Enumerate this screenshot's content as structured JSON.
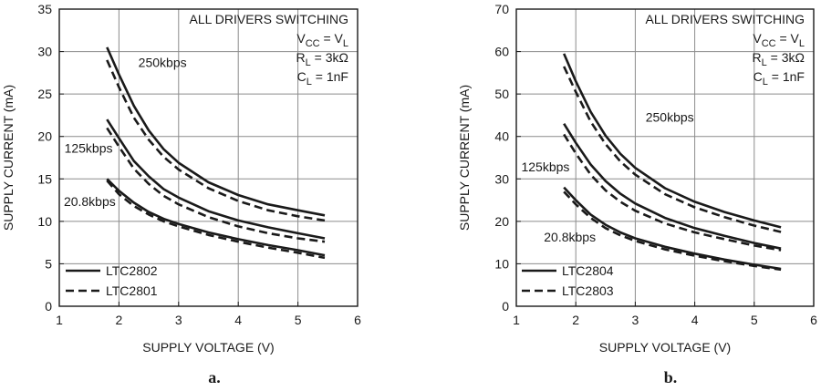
{
  "chart_data": [
    {
      "type": "line",
      "panel_label": "a.",
      "xlabel": "SUPPLY VOLTAGE (V)",
      "ylabel": "SUPPLY CURRENT (mA)",
      "xlim": [
        1,
        6
      ],
      "ylim": [
        0,
        35
      ],
      "xticks": [
        1,
        2,
        3,
        4,
        5,
        6
      ],
      "yticks": [
        0,
        5,
        10,
        15,
        20,
        25,
        30,
        35
      ],
      "grid": true,
      "legend": {
        "placement": "bottom-left",
        "entries": [
          {
            "label": "LTC2802",
            "style": "solid"
          },
          {
            "label": "LTC2801",
            "style": "dashed"
          }
        ]
      },
      "conditions": [
        {
          "parts": [
            {
              "t": "ALL DRIVERS SWITCHING"
            }
          ]
        },
        {
          "parts": [
            {
              "t": "V"
            },
            {
              "t": "CC",
              "sub": true
            },
            {
              "t": " = V"
            },
            {
              "t": "L",
              "sub": true
            }
          ]
        },
        {
          "parts": [
            {
              "t": "R"
            },
            {
              "t": "L",
              "sub": true
            },
            {
              "t": " = 3kΩ"
            }
          ]
        },
        {
          "parts": [
            {
              "t": "C"
            },
            {
              "t": "L",
              "sub": true
            },
            {
              "t": " = 1nF"
            }
          ]
        }
      ],
      "curve_labels": [
        {
          "text": "250kbps",
          "x": 2.73,
          "y": 28.2
        },
        {
          "text": "125kbps",
          "x": 1.49,
          "y": 18.1
        },
        {
          "text": "20.8kbps",
          "x": 1.51,
          "y": 11.8
        }
      ],
      "series": [
        {
          "label_ref": "250kbps",
          "style": "solid",
          "x": [
            1.8,
            2.0,
            2.25,
            2.5,
            2.75,
            3.0,
            3.5,
            4.0,
            4.5,
            5.0,
            5.45
          ],
          "y": [
            30.5,
            27.3,
            23.6,
            20.7,
            18.5,
            16.9,
            14.6,
            13.1,
            12.0,
            11.3,
            10.7
          ]
        },
        {
          "label_ref": "250kbps",
          "style": "dashed",
          "x": [
            1.8,
            2.0,
            2.25,
            2.5,
            2.75,
            3.0,
            3.5,
            4.0,
            4.5,
            5.0,
            5.45
          ],
          "y": [
            29.0,
            25.8,
            22.2,
            19.6,
            17.6,
            16.1,
            13.9,
            12.4,
            11.3,
            10.6,
            10.1
          ]
        },
        {
          "label_ref": "125kbps",
          "style": "solid",
          "x": [
            1.8,
            2.0,
            2.25,
            2.5,
            2.75,
            3.0,
            3.5,
            4.0,
            4.5,
            5.0,
            5.45
          ],
          "y": [
            22.0,
            19.8,
            17.1,
            15.3,
            13.8,
            12.8,
            11.2,
            10.1,
            9.3,
            8.6,
            8.0
          ]
        },
        {
          "label_ref": "125kbps",
          "style": "dashed",
          "x": [
            1.8,
            2.0,
            2.25,
            2.5,
            2.75,
            3.0,
            3.5,
            4.0,
            4.5,
            5.0,
            5.45
          ],
          "y": [
            21.0,
            18.8,
            16.2,
            14.4,
            13.0,
            12.0,
            10.5,
            9.4,
            8.6,
            8.0,
            7.6
          ]
        },
        {
          "label_ref": "20.8kbps",
          "style": "solid",
          "x": [
            1.8,
            2.0,
            2.25,
            2.5,
            2.75,
            3.0,
            3.5,
            4.0,
            4.5,
            5.0,
            5.45
          ],
          "y": [
            15.0,
            13.6,
            12.2,
            11.1,
            10.3,
            9.7,
            8.7,
            7.9,
            7.2,
            6.6,
            6.0
          ]
        },
        {
          "label_ref": "20.8kbps",
          "style": "dashed",
          "x": [
            1.8,
            2.0,
            2.25,
            2.5,
            2.75,
            3.0,
            3.5,
            4.0,
            4.5,
            5.0,
            5.45
          ],
          "y": [
            14.8,
            13.2,
            11.8,
            10.8,
            10.0,
            9.4,
            8.4,
            7.6,
            6.9,
            6.3,
            5.7
          ]
        }
      ]
    },
    {
      "type": "line",
      "panel_label": "b.",
      "xlabel": "SUPPLY VOLTAGE (V)",
      "ylabel": "SUPPLY CURRENT (mA)",
      "xlim": [
        1,
        6
      ],
      "ylim": [
        0,
        70
      ],
      "xticks": [
        1,
        2,
        3,
        4,
        5,
        6
      ],
      "yticks": [
        0,
        10,
        20,
        30,
        40,
        50,
        60,
        70
      ],
      "grid": true,
      "legend": {
        "placement": "bottom-left",
        "entries": [
          {
            "label": "LTC2804",
            "style": "solid"
          },
          {
            "label": "LTC2803",
            "style": "dashed"
          }
        ]
      },
      "conditions": [
        {
          "parts": [
            {
              "t": "ALL DRIVERS SWITCHING"
            }
          ]
        },
        {
          "parts": [
            {
              "t": "V"
            },
            {
              "t": "CC",
              "sub": true
            },
            {
              "t": " = V"
            },
            {
              "t": "L",
              "sub": true
            }
          ]
        },
        {
          "parts": [
            {
              "t": "R"
            },
            {
              "t": "L",
              "sub": true
            },
            {
              "t": " = 3kΩ"
            }
          ]
        },
        {
          "parts": [
            {
              "t": "C"
            },
            {
              "t": "L",
              "sub": true
            },
            {
              "t": " = 1nF"
            }
          ]
        }
      ],
      "curve_labels": [
        {
          "text": "250kbps",
          "x": 3.58,
          "y": 43.5
        },
        {
          "text": "125kbps",
          "x": 1.49,
          "y": 31.8
        },
        {
          "text": "20.8kbps",
          "x": 1.9,
          "y": 15.2
        }
      ],
      "series": [
        {
          "label_ref": "250kbps",
          "style": "solid",
          "x": [
            1.8,
            2.0,
            2.25,
            2.5,
            2.75,
            3.0,
            3.5,
            4.0,
            4.5,
            5.0,
            5.45
          ],
          "y": [
            59.5,
            53.0,
            45.8,
            40.2,
            35.9,
            32.6,
            27.8,
            24.6,
            22.2,
            20.2,
            18.6
          ]
        },
        {
          "label_ref": "250kbps",
          "style": "dashed",
          "x": [
            1.8,
            2.0,
            2.25,
            2.5,
            2.75,
            3.0,
            3.5,
            4.0,
            4.5,
            5.0,
            5.45
          ],
          "y": [
            56.5,
            50.5,
            43.5,
            38.2,
            34.1,
            31.0,
            26.4,
            23.3,
            21.0,
            19.0,
            17.5
          ]
        },
        {
          "label_ref": "125kbps",
          "style": "solid",
          "x": [
            1.8,
            2.0,
            2.25,
            2.5,
            2.75,
            3.0,
            3.5,
            4.0,
            4.5,
            5.0,
            5.45
          ],
          "y": [
            43.0,
            38.5,
            33.4,
            29.5,
            26.5,
            24.2,
            20.8,
            18.4,
            16.6,
            14.9,
            13.6
          ]
        },
        {
          "label_ref": "125kbps",
          "style": "dashed",
          "x": [
            1.8,
            2.0,
            2.25,
            2.5,
            2.75,
            3.0,
            3.5,
            4.0,
            4.5,
            5.0,
            5.45
          ],
          "y": [
            40.5,
            36.0,
            31.0,
            27.3,
            24.6,
            22.5,
            19.5,
            17.4,
            15.8,
            14.3,
            13.2
          ]
        },
        {
          "label_ref": "20.8kbps",
          "style": "solid",
          "x": [
            1.8,
            2.0,
            2.25,
            2.5,
            2.75,
            3.0,
            3.5,
            4.0,
            4.5,
            5.0,
            5.45
          ],
          "y": [
            28.0,
            25.0,
            21.6,
            19.2,
            17.4,
            16.0,
            14.0,
            12.4,
            11.0,
            9.8,
            8.8
          ]
        },
        {
          "label_ref": "20.8kbps",
          "style": "dashed",
          "x": [
            1.8,
            2.0,
            2.25,
            2.5,
            2.75,
            3.0,
            3.5,
            4.0,
            4.5,
            5.0,
            5.45
          ],
          "y": [
            27.0,
            24.0,
            20.8,
            18.4,
            16.7,
            15.4,
            13.4,
            11.9,
            10.6,
            9.5,
            8.6
          ]
        }
      ]
    }
  ]
}
